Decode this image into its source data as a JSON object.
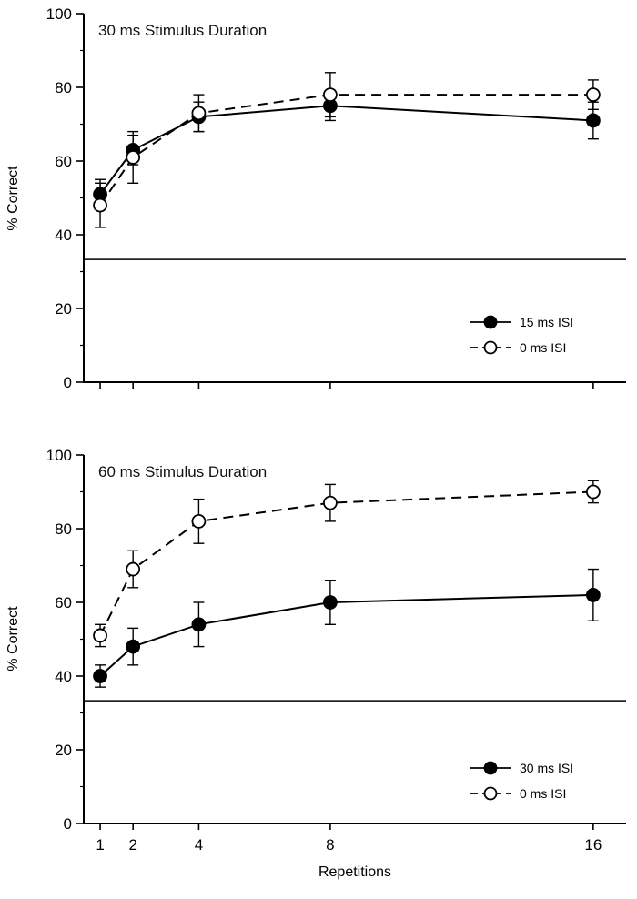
{
  "figure": {
    "background": "#ffffff",
    "xlabel": "Repetitions"
  },
  "colors": {
    "axis": "#000000",
    "line": "#000000",
    "filled_marker": "#000000",
    "open_marker_fill": "#ffffff",
    "text": "#000000"
  },
  "chart_data": [
    {
      "type": "line",
      "title": "30 ms Stimulus Duration",
      "xlabel": "",
      "ylabel": "% Correct",
      "x": [
        1,
        2,
        4,
        8,
        16
      ],
      "x_ticks": [
        1,
        2,
        4,
        8,
        16
      ],
      "show_x_tick_labels": false,
      "xlim": [
        0.5,
        17
      ],
      "ylim": [
        0,
        100
      ],
      "y_major_ticks": [
        0,
        20,
        40,
        60,
        80,
        100
      ],
      "y_minor_tick_step": 10,
      "grid": false,
      "reference_line_y": 33.3,
      "legend_position": "inside-bottom-right",
      "series": [
        {
          "name": "15 ms ISI",
          "marker": "filled-circle",
          "line_style": "solid",
          "values": [
            51,
            63,
            72,
            75,
            71
          ],
          "error_bars": [
            4,
            4,
            4,
            4,
            5
          ]
        },
        {
          "name": "0 ms ISI",
          "marker": "open-circle",
          "line_style": "dashed",
          "values": [
            48,
            61,
            73,
            78,
            78
          ],
          "error_bars": [
            6,
            7,
            5,
            6,
            4
          ]
        }
      ]
    },
    {
      "type": "line",
      "title": "60 ms Stimulus Duration",
      "xlabel": "Repetitions",
      "ylabel": "% Correct",
      "x": [
        1,
        2,
        4,
        8,
        16
      ],
      "x_ticks": [
        1,
        2,
        4,
        8,
        16
      ],
      "show_x_tick_labels": true,
      "xlim": [
        0.5,
        17
      ],
      "ylim": [
        0,
        100
      ],
      "y_major_ticks": [
        0,
        20,
        40,
        60,
        80,
        100
      ],
      "y_minor_tick_step": 10,
      "grid": false,
      "reference_line_y": 33.3,
      "legend_position": "inside-bottom-right",
      "series": [
        {
          "name": "30 ms ISI",
          "marker": "filled-circle",
          "line_style": "solid",
          "values": [
            40,
            48,
            54,
            60,
            62
          ],
          "error_bars": [
            3,
            5,
            6,
            6,
            7
          ]
        },
        {
          "name": "0 ms ISI",
          "marker": "open-circle",
          "line_style": "dashed",
          "values": [
            51,
            69,
            82,
            87,
            90
          ],
          "error_bars": [
            3,
            5,
            6,
            5,
            3
          ]
        }
      ]
    }
  ]
}
